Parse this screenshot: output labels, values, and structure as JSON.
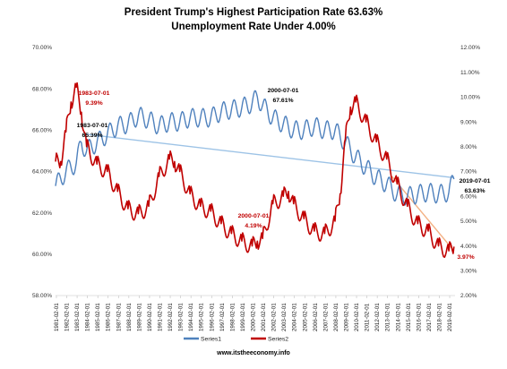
{
  "chart_data": {
    "type": "line",
    "title": "President Trump's Highest Participation Rate 63.63%",
    "subtitle": "Unemployment Rate Under 4.00%",
    "footer": "www.itstheeconomy.info",
    "y_left": {
      "ylim": [
        58,
        70
      ],
      "ticks": [
        "58.00%",
        "60.00%",
        "62.00%",
        "64.00%",
        "66.00%",
        "68.00%",
        "70.00%"
      ]
    },
    "y_right": {
      "ylim": [
        2,
        12
      ],
      "ticks": [
        "2.00%",
        "3.00%",
        "4.00%",
        "5.00%",
        "6.00%",
        "7.00%",
        "8.00%",
        "9.00%",
        "10.00%",
        "11.00%",
        "12.00%"
      ]
    },
    "x_ticks": [
      "1981-02-01",
      "1982-02-01",
      "1983-02-01",
      "1984-02-01",
      "1985-02-01",
      "1986-02-01",
      "1987-02-01",
      "1988-02-01",
      "1989-02-01",
      "1990-02-01",
      "1991-02-01",
      "1992-02-01",
      "1993-02-01",
      "1994-02-01",
      "1995-02-01",
      "1996-02-01",
      "1997-02-01",
      "1998-02-01",
      "1999-02-01",
      "2000-02-01",
      "2001-02-01",
      "2002-02-01",
      "2003-02-01",
      "2004-02-01",
      "2005-02-01",
      "2006-02-01",
      "2007-02-01",
      "2008-02-01",
      "2009-02-01",
      "2010-02-01",
      "2011-02-01",
      "2012-02-01",
      "2013-02-01",
      "2014-02-01",
      "2015-02-01",
      "2016-02-01",
      "2017-02-01",
      "2018-02-01",
      "2019-02-01"
    ],
    "grid": false,
    "legend_position": "bottom",
    "series": [
      {
        "name": "Series1",
        "axis": "left",
        "color": "#4f81bd",
        "x": [
          1981.0,
          1982.0,
          1983.0,
          1983.5,
          1984.0,
          1985.0,
          1986.0,
          1987.0,
          1988.0,
          1989.0,
          1990.0,
          1991.0,
          1992.0,
          1993.0,
          1994.0,
          1995.0,
          1996.0,
          1997.0,
          1998.0,
          1999.0,
          2000.0,
          2000.5,
          2001.0,
          2002.0,
          2003.0,
          2004.0,
          2005.0,
          2006.0,
          2007.0,
          2008.0,
          2009.0,
          2010.0,
          2011.0,
          2012.0,
          2013.0,
          2014.0,
          2015.0,
          2016.0,
          2017.0,
          2018.0,
          2019.0,
          2019.5
        ],
        "y": [
          63.3,
          64.0,
          64.4,
          65.39,
          65.0,
          65.4,
          65.8,
          66.2,
          66.3,
          66.7,
          66.5,
          66.2,
          66.4,
          66.4,
          66.6,
          66.6,
          66.6,
          66.9,
          67.0,
          67.1,
          67.3,
          67.61,
          67.2,
          66.6,
          66.3,
          66.0,
          66.0,
          66.2,
          66.0,
          66.0,
          65.4,
          64.7,
          64.2,
          63.7,
          63.4,
          62.9,
          62.8,
          62.9,
          63.0,
          62.9,
          63.0,
          63.63
        ]
      },
      {
        "name": "Series2",
        "axis": "right",
        "color": "#c00000",
        "x": [
          1981.0,
          1981.5,
          1982.0,
          1982.5,
          1983.0,
          1983.5,
          1984.0,
          1985.0,
          1986.0,
          1987.0,
          1988.0,
          1989.0,
          1990.0,
          1991.0,
          1992.0,
          1992.5,
          1993.0,
          1994.0,
          1995.0,
          1996.0,
          1997.0,
          1998.0,
          1999.0,
          2000.0,
          2000.5,
          2001.0,
          2002.0,
          2003.0,
          2003.5,
          2004.0,
          2005.0,
          2006.0,
          2007.0,
          2008.0,
          2008.5,
          2009.0,
          2009.5,
          2010.0,
          2011.0,
          2012.0,
          2013.0,
          2014.0,
          2015.0,
          2016.0,
          2017.0,
          2018.0,
          2019.0,
          2019.5
        ],
        "y": [
          7.4,
          7.4,
          8.6,
          9.8,
          10.4,
          9.39,
          8.0,
          7.3,
          7.0,
          6.2,
          5.5,
          5.3,
          5.6,
          6.8,
          7.5,
          7.4,
          7.0,
          6.1,
          5.6,
          5.4,
          4.9,
          4.5,
          4.2,
          4.0,
          4.19,
          4.3,
          5.7,
          6.0,
          6.2,
          5.7,
          5.1,
          4.6,
          4.5,
          5.0,
          6.1,
          8.3,
          9.6,
          9.8,
          9.0,
          8.2,
          7.5,
          6.5,
          5.6,
          4.9,
          4.6,
          4.0,
          3.8,
          3.97
        ]
      }
    ],
    "trendlines": [
      {
        "axis": "left",
        "color": "#9dc3e6",
        "x": [
          1984.0,
          2019.5
        ],
        "y": [
          65.8,
          63.7
        ]
      },
      {
        "axis": "right",
        "color": "#f4b183",
        "x": [
          2013.5,
          2019.5
        ],
        "y": [
          6.8,
          3.8
        ]
      }
    ],
    "annotations": [
      {
        "text": "1983-07-01",
        "color": "#c00000",
        "axis": "right",
        "x": 1983.5,
        "y": 9.39
      },
      {
        "text": "9.39%",
        "color": "#c00000",
        "axis": "right",
        "x": 1983.5,
        "y": 9.39
      },
      {
        "text": "1983-07-01",
        "color": "#000000",
        "axis": "left",
        "x": 1983.5,
        "y": 65.39
      },
      {
        "text": "65.39%",
        "color": "#000000",
        "axis": "left",
        "x": 1983.5,
        "y": 65.39
      },
      {
        "text": "2000-07-01",
        "color": "#000000",
        "axis": "left",
        "x": 2000.5,
        "y": 67.61
      },
      {
        "text": "67.61%",
        "color": "#000000",
        "axis": "left",
        "x": 2000.5,
        "y": 67.61
      },
      {
        "text": "2000-07-01",
        "color": "#c00000",
        "axis": "right",
        "x": 2000.5,
        "y": 4.19
      },
      {
        "text": "4.19%",
        "color": "#c00000",
        "axis": "right",
        "x": 2000.5,
        "y": 4.19
      },
      {
        "text": "2019-07-01",
        "color": "#000000",
        "axis": "left",
        "x": 2019.5,
        "y": 63.63
      },
      {
        "text": "63.63%",
        "color": "#000000",
        "axis": "left",
        "x": 2019.5,
        "y": 63.63
      },
      {
        "text": "3.97%",
        "color": "#c00000",
        "axis": "right",
        "x": 2019.5,
        "y": 3.97
      }
    ]
  }
}
